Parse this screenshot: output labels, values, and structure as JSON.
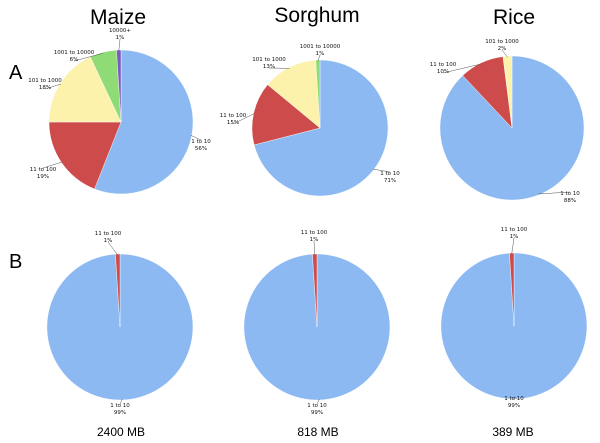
{
  "colors": {
    "1 to 10": "#8db9f2",
    "11 to 100": "#cd4b4b",
    "101 to 1000": "#fcf2ab",
    "1001 to 10000": "#8fdb75",
    "10000+": "#7a5bbf"
  },
  "row_labels": [
    "A",
    "B"
  ],
  "chart_data": [
    {
      "type": "pie",
      "title": "Maize",
      "row": "A",
      "slices": [
        {
          "label": "1 to 10",
          "pct_label": "56%",
          "value": 56
        },
        {
          "label": "11 to 100",
          "pct_label": "19%",
          "value": 19
        },
        {
          "label": "101 to 1000",
          "pct_label": "18%",
          "value": 18
        },
        {
          "label": "1001 to 10000",
          "pct_label": "6%",
          "value": 6
        },
        {
          "label": "10000+",
          "pct_label": "1%",
          "value": 1
        }
      ]
    },
    {
      "type": "pie",
      "title": "Sorghum",
      "row": "A",
      "slices": [
        {
          "label": "1 to 10",
          "pct_label": "71%",
          "value": 71
        },
        {
          "label": "11 to 100",
          "pct_label": "15%",
          "value": 15
        },
        {
          "label": "101 to 1000",
          "pct_label": "13%",
          "value": 13
        },
        {
          "label": "1001 to 10000",
          "pct_label": "1%",
          "value": 1
        }
      ]
    },
    {
      "type": "pie",
      "title": "Rice",
      "row": "A",
      "slices": [
        {
          "label": "1 to 10",
          "pct_label": "88%",
          "value": 88
        },
        {
          "label": "11 to 100",
          "pct_label": "10%",
          "value": 10
        },
        {
          "label": "101 to 1000",
          "pct_label": "2%",
          "value": 2
        }
      ]
    },
    {
      "type": "pie",
      "title": "",
      "row": "B",
      "size_label": "2400 MB",
      "slices": [
        {
          "label": "1 to 10",
          "pct_label": "99%",
          "value": 99
        },
        {
          "label": "11 to 100",
          "pct_label": "1%",
          "value": 1
        }
      ]
    },
    {
      "type": "pie",
      "title": "",
      "row": "B",
      "size_label": "818 MB",
      "slices": [
        {
          "label": "1 to 10",
          "pct_label": "99%",
          "value": 99
        },
        {
          "label": "11 to 100",
          "pct_label": "1%",
          "value": 1
        }
      ]
    },
    {
      "type": "pie",
      "title": "",
      "row": "B",
      "size_label": "389 MB",
      "slices": [
        {
          "label": "1 to 10",
          "pct_label": "99%",
          "value": 99
        },
        {
          "label": "11 to 100",
          "pct_label": "1%",
          "value": 1
        }
      ]
    }
  ]
}
